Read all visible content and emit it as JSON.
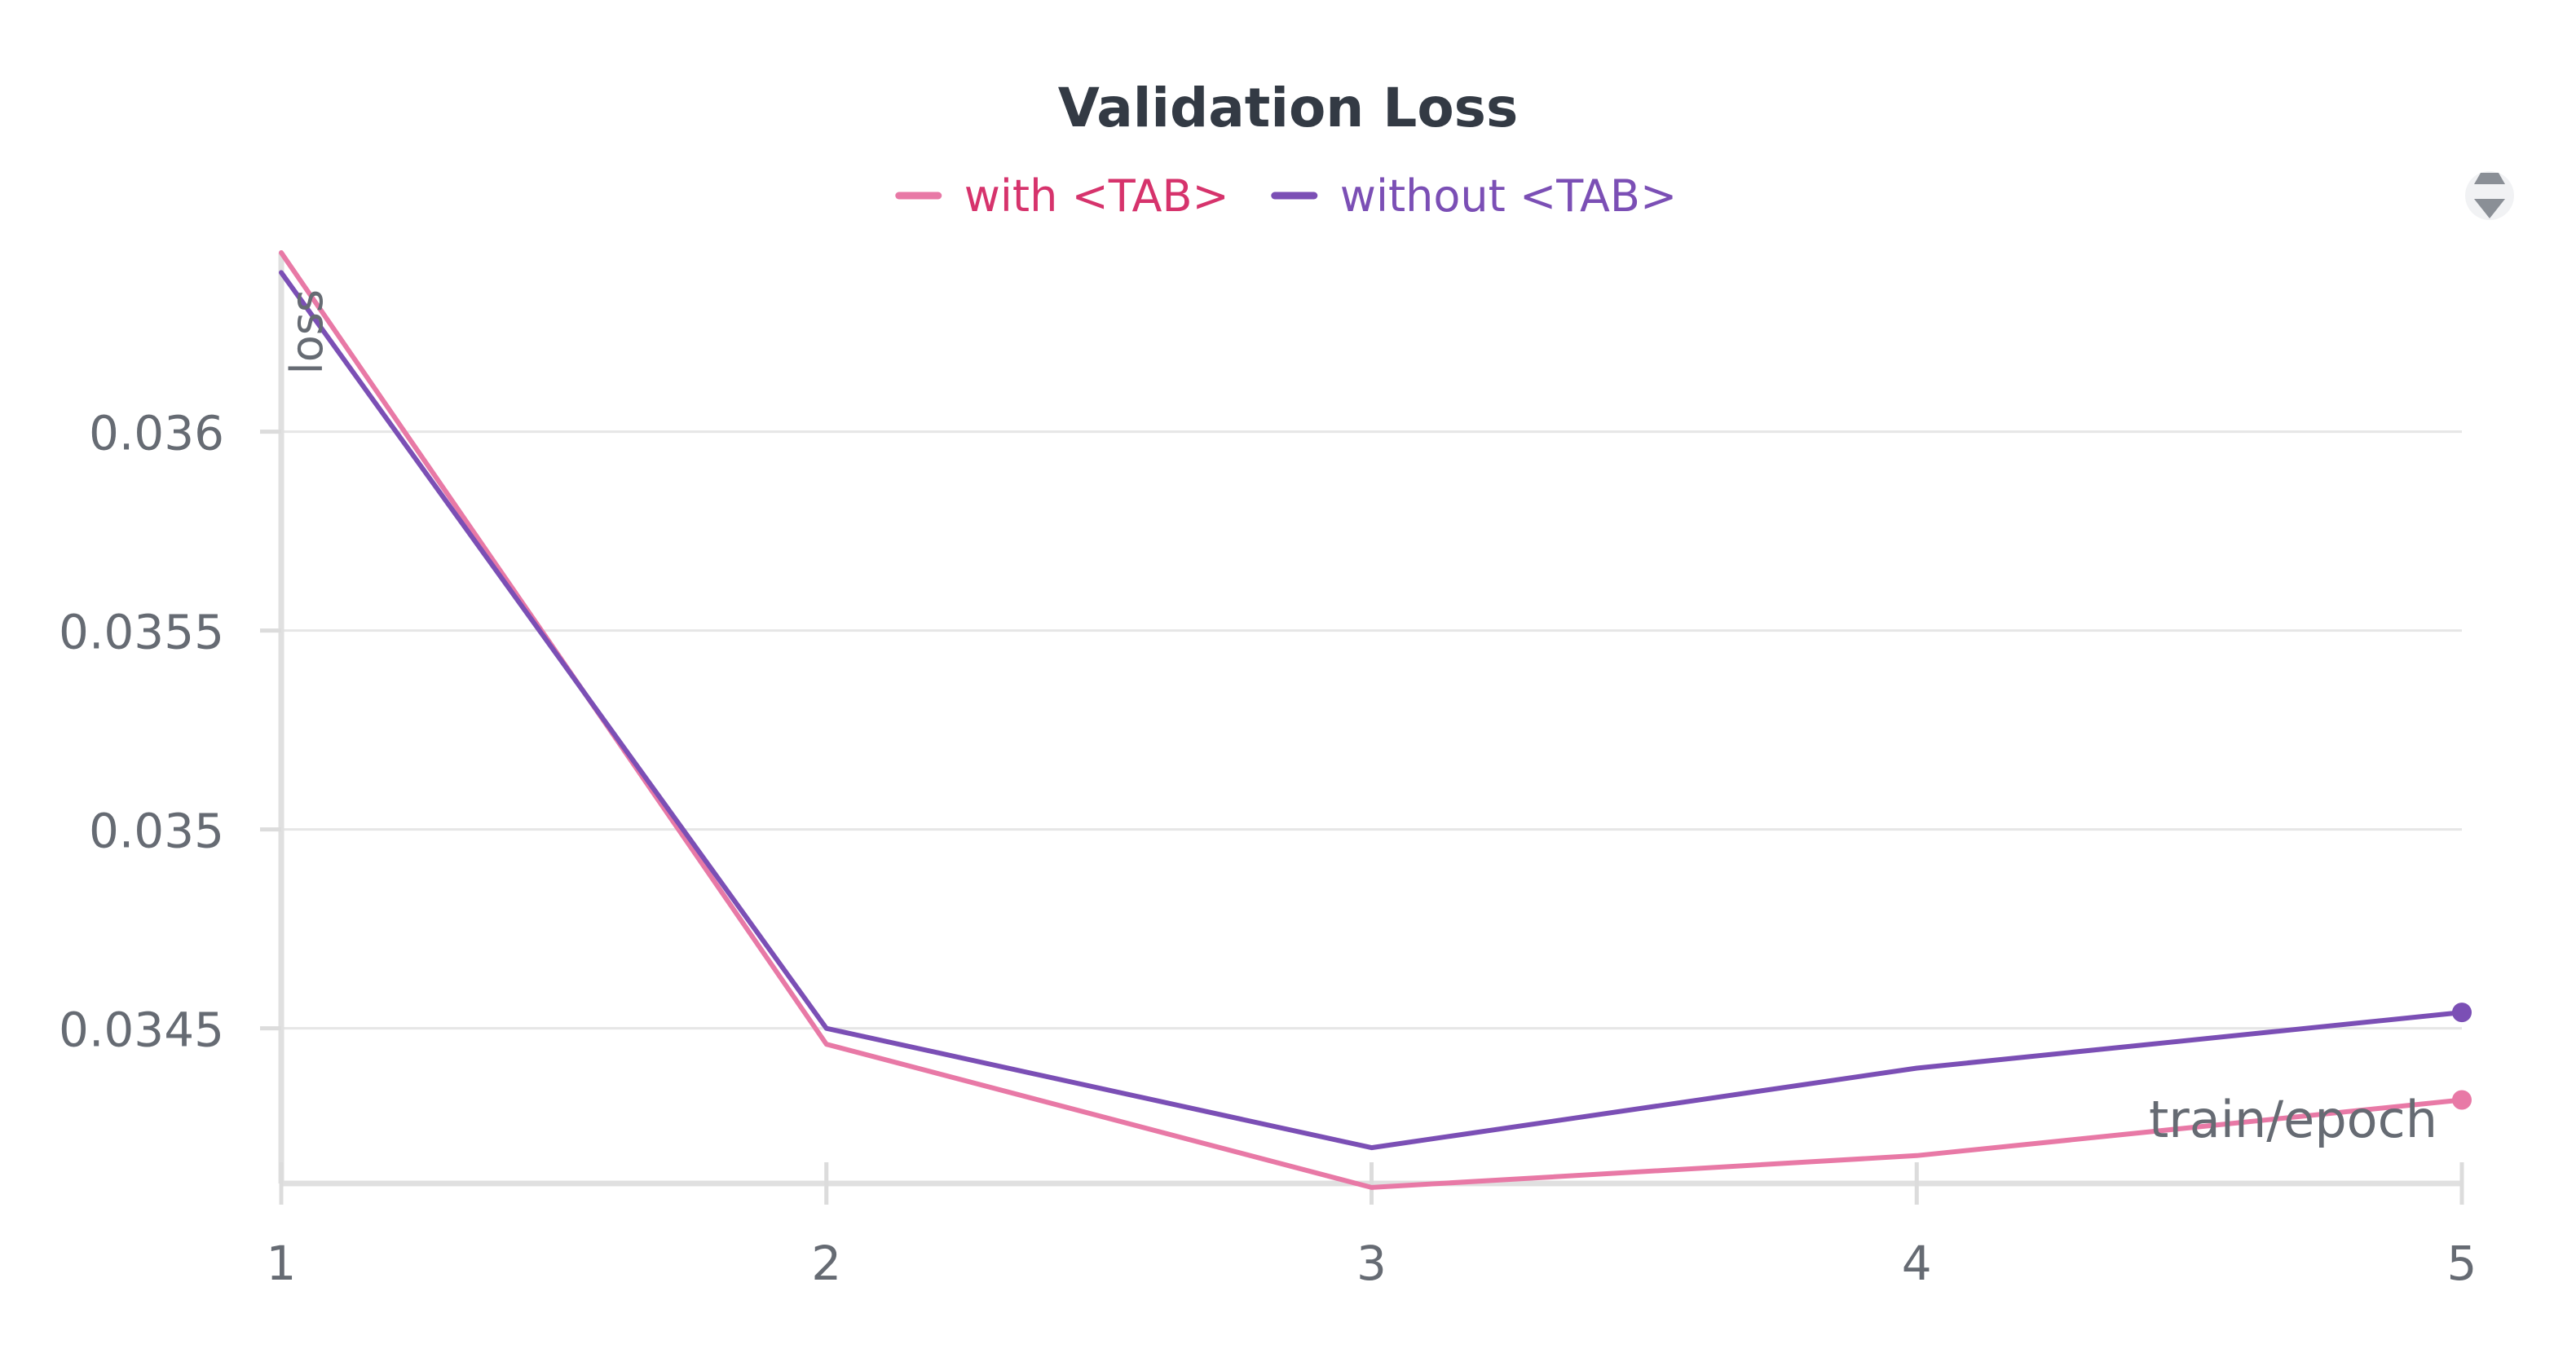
{
  "chart_data": {
    "type": "line",
    "title": "Validation Loss",
    "xlabel": "train/epoch",
    "ylabel": "loss",
    "x": [
      1,
      2,
      3,
      4,
      5
    ],
    "xlim": [
      1,
      5
    ],
    "ylim": [
      0.03411,
      0.03645
    ],
    "yticks": [
      0.0345,
      0.035,
      0.0355,
      0.036
    ],
    "ytick_labels": [
      "0.0345",
      "0.035",
      "0.0355",
      "0.036"
    ],
    "xticks": [
      1,
      2,
      3,
      4,
      5
    ],
    "xtick_labels": [
      "1",
      "2",
      "3",
      "4",
      "5"
    ],
    "grid": "horizontal",
    "legend_position": "top-center",
    "series": [
      {
        "name": "with <TAB>",
        "color": "#e879a6",
        "label_color": "#d6336c",
        "values": [
          0.03645,
          0.03446,
          0.0341,
          0.03418,
          0.03432
        ]
      },
      {
        "name": "without <TAB>",
        "color": "#7b4fb5",
        "label_color": "#7b4fb5",
        "values": [
          0.0364,
          0.0345,
          0.0342,
          0.0344,
          0.03454
        ]
      }
    ]
  },
  "controls": {
    "scroll_icon": "scroll-handle-icon"
  }
}
